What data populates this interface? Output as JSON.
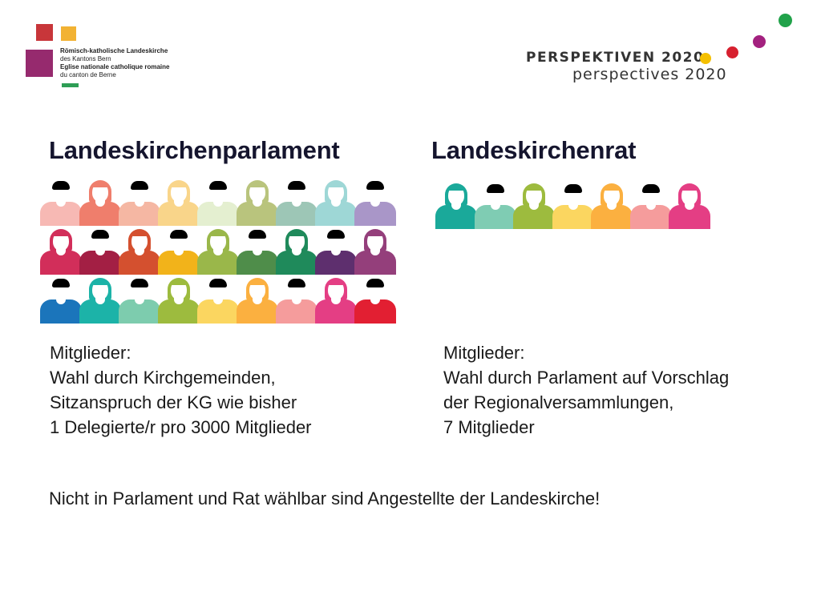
{
  "logo": {
    "line1": "Römisch-katholische Landeskirche",
    "line2": "des Kantons Bern",
    "line3": "Eglise nationale catholique romaine",
    "line4": "du canton de Berne",
    "colors": [
      "#c8363a",
      "#f2b233",
      "#962a6e",
      "#2e9e55"
    ]
  },
  "brand": {
    "title": "PERSPEKTIVEN 2020",
    "subtitle": "perspectives 2020",
    "dot_colors": [
      "#f5c000",
      "#d7202f",
      "#a3217f",
      "#21a24a"
    ]
  },
  "parliament": {
    "heading": "Landeskirchenparlament",
    "members": [
      [
        "#f7b9b4",
        "#ef7e6c",
        "#f5b7a3",
        "#f9d58a",
        "#e4efd0",
        "#b9c47d",
        "#9dc6b6",
        "#9ed7d6",
        "#a996c8"
      ],
      [
        "#d22e5a",
        "#a31f44",
        "#d4502f",
        "#f2b31a",
        "#9ab74a",
        "#4f8d4a",
        "#1f8a5b",
        "#5e2f6e",
        "#943f7b"
      ],
      [
        "#1b75bb",
        "#1cb3a8",
        "#7dccae",
        "#9dbb3e",
        "#fbd660",
        "#fbb040",
        "#f59c9c",
        "#e43e84",
        "#e21f32"
      ]
    ],
    "women": [
      [
        false,
        true,
        false,
        true,
        false,
        true,
        false,
        true,
        false
      ],
      [
        true,
        false,
        true,
        false,
        true,
        false,
        true,
        false,
        true
      ],
      [
        false,
        true,
        false,
        true,
        false,
        true,
        false,
        true,
        false
      ]
    ],
    "text": [
      "Mitglieder:",
      "Wahl durch Kirchgemeinden,",
      "Sitzanspruch der KG wie bisher",
      "1 Delegierte/r  pro 3000 Mitglieder"
    ]
  },
  "council": {
    "heading": "Landeskirchenrat",
    "members": [
      "#1aa99a",
      "#7fccb3",
      "#9dbb3e",
      "#fbd660",
      "#fbb040",
      "#f59c9c",
      "#e43e84"
    ],
    "women": [
      true,
      false,
      true,
      false,
      true,
      false,
      true
    ],
    "text": [
      "Mitglieder:",
      "Wahl durch Parlament auf Vorschlag",
      "der Regionalversammlungen,",
      "7 Mitglieder"
    ]
  },
  "notice": "Nicht in Parlament und Rat wählbar sind Angestellte der Landeskirche!"
}
